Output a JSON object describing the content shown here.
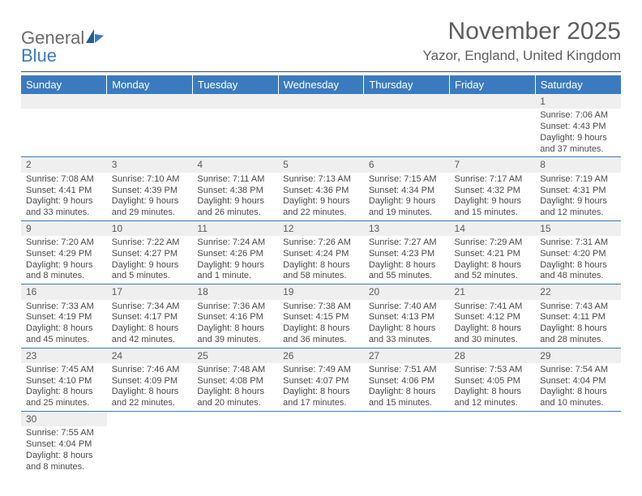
{
  "brand": {
    "word1": "General",
    "word2": "Blue"
  },
  "colors": {
    "header_bg": "#3a7bbf",
    "header_text": "#ffffff",
    "daynum_bg": "#efefef",
    "text": "#4a4a4a",
    "title_text": "#5e5e5e",
    "row_border": "#3a7bbf"
  },
  "title": "November 2025",
  "location": "Yazor, England, United Kingdom",
  "day_headers": [
    "Sunday",
    "Monday",
    "Tuesday",
    "Wednesday",
    "Thursday",
    "Friday",
    "Saturday"
  ],
  "weeks": [
    [
      null,
      null,
      null,
      null,
      null,
      null,
      {
        "n": "1",
        "sunrise": "Sunrise: 7:06 AM",
        "sunset": "Sunset: 4:43 PM",
        "daylight1": "Daylight: 9 hours",
        "daylight2": "and 37 minutes."
      }
    ],
    [
      {
        "n": "2",
        "sunrise": "Sunrise: 7:08 AM",
        "sunset": "Sunset: 4:41 PM",
        "daylight1": "Daylight: 9 hours",
        "daylight2": "and 33 minutes."
      },
      {
        "n": "3",
        "sunrise": "Sunrise: 7:10 AM",
        "sunset": "Sunset: 4:39 PM",
        "daylight1": "Daylight: 9 hours",
        "daylight2": "and 29 minutes."
      },
      {
        "n": "4",
        "sunrise": "Sunrise: 7:11 AM",
        "sunset": "Sunset: 4:38 PM",
        "daylight1": "Daylight: 9 hours",
        "daylight2": "and 26 minutes."
      },
      {
        "n": "5",
        "sunrise": "Sunrise: 7:13 AM",
        "sunset": "Sunset: 4:36 PM",
        "daylight1": "Daylight: 9 hours",
        "daylight2": "and 22 minutes."
      },
      {
        "n": "6",
        "sunrise": "Sunrise: 7:15 AM",
        "sunset": "Sunset: 4:34 PM",
        "daylight1": "Daylight: 9 hours",
        "daylight2": "and 19 minutes."
      },
      {
        "n": "7",
        "sunrise": "Sunrise: 7:17 AM",
        "sunset": "Sunset: 4:32 PM",
        "daylight1": "Daylight: 9 hours",
        "daylight2": "and 15 minutes."
      },
      {
        "n": "8",
        "sunrise": "Sunrise: 7:19 AM",
        "sunset": "Sunset: 4:31 PM",
        "daylight1": "Daylight: 9 hours",
        "daylight2": "and 12 minutes."
      }
    ],
    [
      {
        "n": "9",
        "sunrise": "Sunrise: 7:20 AM",
        "sunset": "Sunset: 4:29 PM",
        "daylight1": "Daylight: 9 hours",
        "daylight2": "and 8 minutes."
      },
      {
        "n": "10",
        "sunrise": "Sunrise: 7:22 AM",
        "sunset": "Sunset: 4:27 PM",
        "daylight1": "Daylight: 9 hours",
        "daylight2": "and 5 minutes."
      },
      {
        "n": "11",
        "sunrise": "Sunrise: 7:24 AM",
        "sunset": "Sunset: 4:26 PM",
        "daylight1": "Daylight: 9 hours",
        "daylight2": "and 1 minute."
      },
      {
        "n": "12",
        "sunrise": "Sunrise: 7:26 AM",
        "sunset": "Sunset: 4:24 PM",
        "daylight1": "Daylight: 8 hours",
        "daylight2": "and 58 minutes."
      },
      {
        "n": "13",
        "sunrise": "Sunrise: 7:27 AM",
        "sunset": "Sunset: 4:23 PM",
        "daylight1": "Daylight: 8 hours",
        "daylight2": "and 55 minutes."
      },
      {
        "n": "14",
        "sunrise": "Sunrise: 7:29 AM",
        "sunset": "Sunset: 4:21 PM",
        "daylight1": "Daylight: 8 hours",
        "daylight2": "and 52 minutes."
      },
      {
        "n": "15",
        "sunrise": "Sunrise: 7:31 AM",
        "sunset": "Sunset: 4:20 PM",
        "daylight1": "Daylight: 8 hours",
        "daylight2": "and 48 minutes."
      }
    ],
    [
      {
        "n": "16",
        "sunrise": "Sunrise: 7:33 AM",
        "sunset": "Sunset: 4:19 PM",
        "daylight1": "Daylight: 8 hours",
        "daylight2": "and 45 minutes."
      },
      {
        "n": "17",
        "sunrise": "Sunrise: 7:34 AM",
        "sunset": "Sunset: 4:17 PM",
        "daylight1": "Daylight: 8 hours",
        "daylight2": "and 42 minutes."
      },
      {
        "n": "18",
        "sunrise": "Sunrise: 7:36 AM",
        "sunset": "Sunset: 4:16 PM",
        "daylight1": "Daylight: 8 hours",
        "daylight2": "and 39 minutes."
      },
      {
        "n": "19",
        "sunrise": "Sunrise: 7:38 AM",
        "sunset": "Sunset: 4:15 PM",
        "daylight1": "Daylight: 8 hours",
        "daylight2": "and 36 minutes."
      },
      {
        "n": "20",
        "sunrise": "Sunrise: 7:40 AM",
        "sunset": "Sunset: 4:13 PM",
        "daylight1": "Daylight: 8 hours",
        "daylight2": "and 33 minutes."
      },
      {
        "n": "21",
        "sunrise": "Sunrise: 7:41 AM",
        "sunset": "Sunset: 4:12 PM",
        "daylight1": "Daylight: 8 hours",
        "daylight2": "and 30 minutes."
      },
      {
        "n": "22",
        "sunrise": "Sunrise: 7:43 AM",
        "sunset": "Sunset: 4:11 PM",
        "daylight1": "Daylight: 8 hours",
        "daylight2": "and 28 minutes."
      }
    ],
    [
      {
        "n": "23",
        "sunrise": "Sunrise: 7:45 AM",
        "sunset": "Sunset: 4:10 PM",
        "daylight1": "Daylight: 8 hours",
        "daylight2": "and 25 minutes."
      },
      {
        "n": "24",
        "sunrise": "Sunrise: 7:46 AM",
        "sunset": "Sunset: 4:09 PM",
        "daylight1": "Daylight: 8 hours",
        "daylight2": "and 22 minutes."
      },
      {
        "n": "25",
        "sunrise": "Sunrise: 7:48 AM",
        "sunset": "Sunset: 4:08 PM",
        "daylight1": "Daylight: 8 hours",
        "daylight2": "and 20 minutes."
      },
      {
        "n": "26",
        "sunrise": "Sunrise: 7:49 AM",
        "sunset": "Sunset: 4:07 PM",
        "daylight1": "Daylight: 8 hours",
        "daylight2": "and 17 minutes."
      },
      {
        "n": "27",
        "sunrise": "Sunrise: 7:51 AM",
        "sunset": "Sunset: 4:06 PM",
        "daylight1": "Daylight: 8 hours",
        "daylight2": "and 15 minutes."
      },
      {
        "n": "28",
        "sunrise": "Sunrise: 7:53 AM",
        "sunset": "Sunset: 4:05 PM",
        "daylight1": "Daylight: 8 hours",
        "daylight2": "and 12 minutes."
      },
      {
        "n": "29",
        "sunrise": "Sunrise: 7:54 AM",
        "sunset": "Sunset: 4:04 PM",
        "daylight1": "Daylight: 8 hours",
        "daylight2": "and 10 minutes."
      }
    ],
    [
      {
        "n": "30",
        "sunrise": "Sunrise: 7:55 AM",
        "sunset": "Sunset: 4:04 PM",
        "daylight1": "Daylight: 8 hours",
        "daylight2": "and 8 minutes."
      },
      null,
      null,
      null,
      null,
      null,
      null
    ]
  ]
}
